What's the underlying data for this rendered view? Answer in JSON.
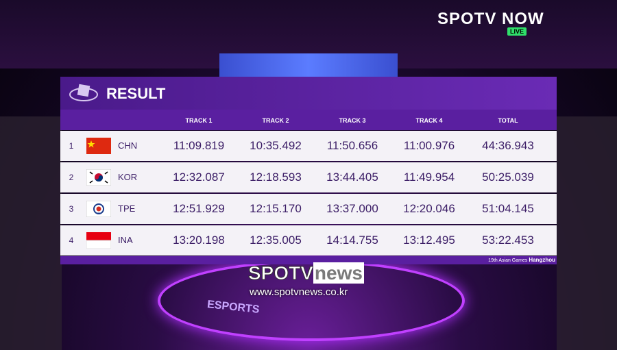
{
  "broadcast": {
    "logo": "SPOTV NOW",
    "live": "LIVE"
  },
  "header": {
    "title": "RESULT"
  },
  "table": {
    "columns": [
      "TRACK 1",
      "TRACK 2",
      "TRACK 3",
      "TRACK 4",
      "TOTAL"
    ],
    "rows": [
      [
        "1",
        "CHN",
        "11:09.819",
        "10:35.492",
        "11:50.656",
        "11:00.976",
        "44:36.943"
      ],
      [
        "2",
        "KOR",
        "12:32.087",
        "12:18.593",
        "13:44.405",
        "11:49.954",
        "50:25.039"
      ],
      [
        "3",
        "TPE",
        "12:51.929",
        "12:15.170",
        "13:37.000",
        "12:20.046",
        "51:04.145"
      ],
      [
        "4",
        "INA",
        "13:20.198",
        "12:35.005",
        "14:14.755",
        "13:12.495",
        "53:22.453"
      ]
    ]
  },
  "footer": {
    "event": "19th Asian Games",
    "city": "Hangzhou"
  },
  "watermark": {
    "brand": "SPOTV",
    "suffix": "news",
    "url": "www.spotvnews.co.kr"
  },
  "stage": "ESPORTS"
}
